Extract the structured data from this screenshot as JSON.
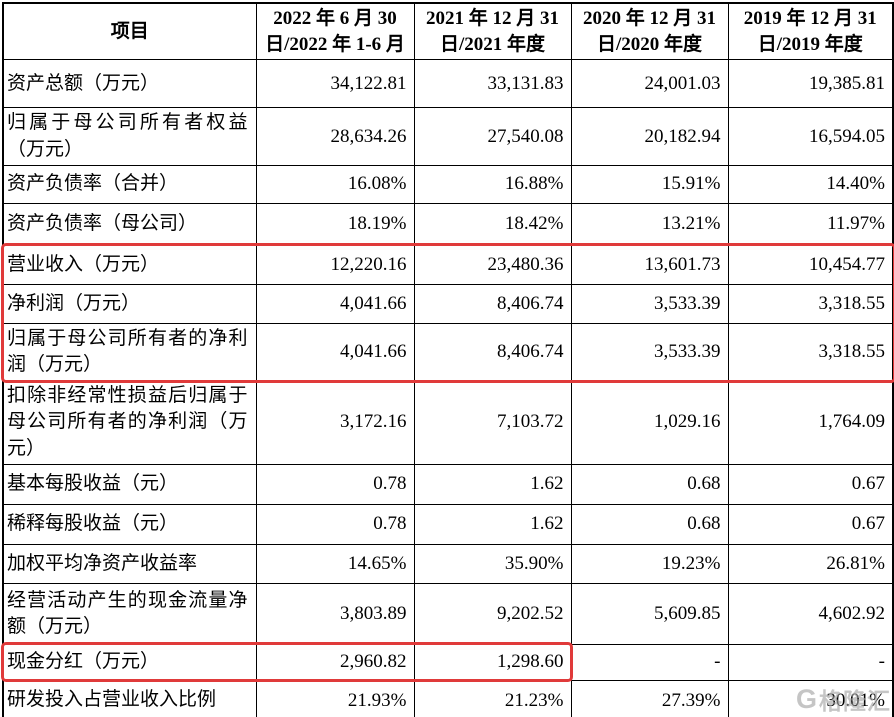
{
  "table": {
    "header": [
      "项目",
      "2022 年 6 月 30\n日/2022 年 1-6 月",
      "2021 年 12 月 31\n日/2021 年度",
      "2020 年 12 月 31\n日/2020 年度",
      "2019 年 12 月 31\n日/2019 年度"
    ],
    "rows": [
      {
        "label": "资产总额（万元）",
        "values": [
          "34,122.81",
          "33,131.83",
          "24,001.03",
          "19,385.81"
        ]
      },
      {
        "label": "归属于母公司所有者权益（万元）",
        "values": [
          "28,634.26",
          "27,540.08",
          "20,182.94",
          "16,594.05"
        ]
      },
      {
        "label": "资产负债率（合并）",
        "values": [
          "16.08%",
          "16.88%",
          "15.91%",
          "14.40%"
        ]
      },
      {
        "label": "资产负债率（母公司）",
        "values": [
          "18.19%",
          "18.42%",
          "13.21%",
          "11.97%"
        ]
      },
      {
        "label": "营业收入（万元）",
        "values": [
          "12,220.16",
          "23,480.36",
          "13,601.73",
          "10,454.77"
        ]
      },
      {
        "label": "净利润（万元）",
        "values": [
          "4,041.66",
          "8,406.74",
          "3,533.39",
          "3,318.55"
        ]
      },
      {
        "label": "归属于母公司所有者的净利润（万元）",
        "values": [
          "4,041.66",
          "8,406.74",
          "3,533.39",
          "3,318.55"
        ]
      },
      {
        "label": "扣除非经常性损益后归属于母公司所有者的净利润（万元）",
        "values": [
          "3,172.16",
          "7,103.72",
          "1,029.16",
          "1,764.09"
        ]
      },
      {
        "label": "基本每股收益（元）",
        "values": [
          "0.78",
          "1.62",
          "0.68",
          "0.67"
        ]
      },
      {
        "label": "稀释每股收益（元）",
        "values": [
          "0.78",
          "1.62",
          "0.68",
          "0.67"
        ]
      },
      {
        "label": "加权平均净资产收益率",
        "values": [
          "14.65%",
          "35.90%",
          "19.23%",
          "26.81%"
        ]
      },
      {
        "label": "经营活动产生的现金流量净额（万元）",
        "values": [
          "3,803.89",
          "9,202.52",
          "5,609.85",
          "4,602.92"
        ]
      },
      {
        "label": "现金分红（万元）",
        "values": [
          "2,960.82",
          "1,298.60",
          "-",
          "-"
        ]
      },
      {
        "label": "研发投入占营业收入比例",
        "values": [
          "21.93%",
          "21.23%",
          "27.39%",
          "30.01%"
        ]
      }
    ]
  },
  "highlights": {
    "color": "#e03a3a",
    "box1_covers": "营业收入（万元）、净利润（万元）、归属于母公司所有者的净利润（万元）",
    "box2_covers": "现金分红（万元）"
  },
  "watermark": {
    "logo_letter": "G",
    "text": "格隆汇"
  }
}
